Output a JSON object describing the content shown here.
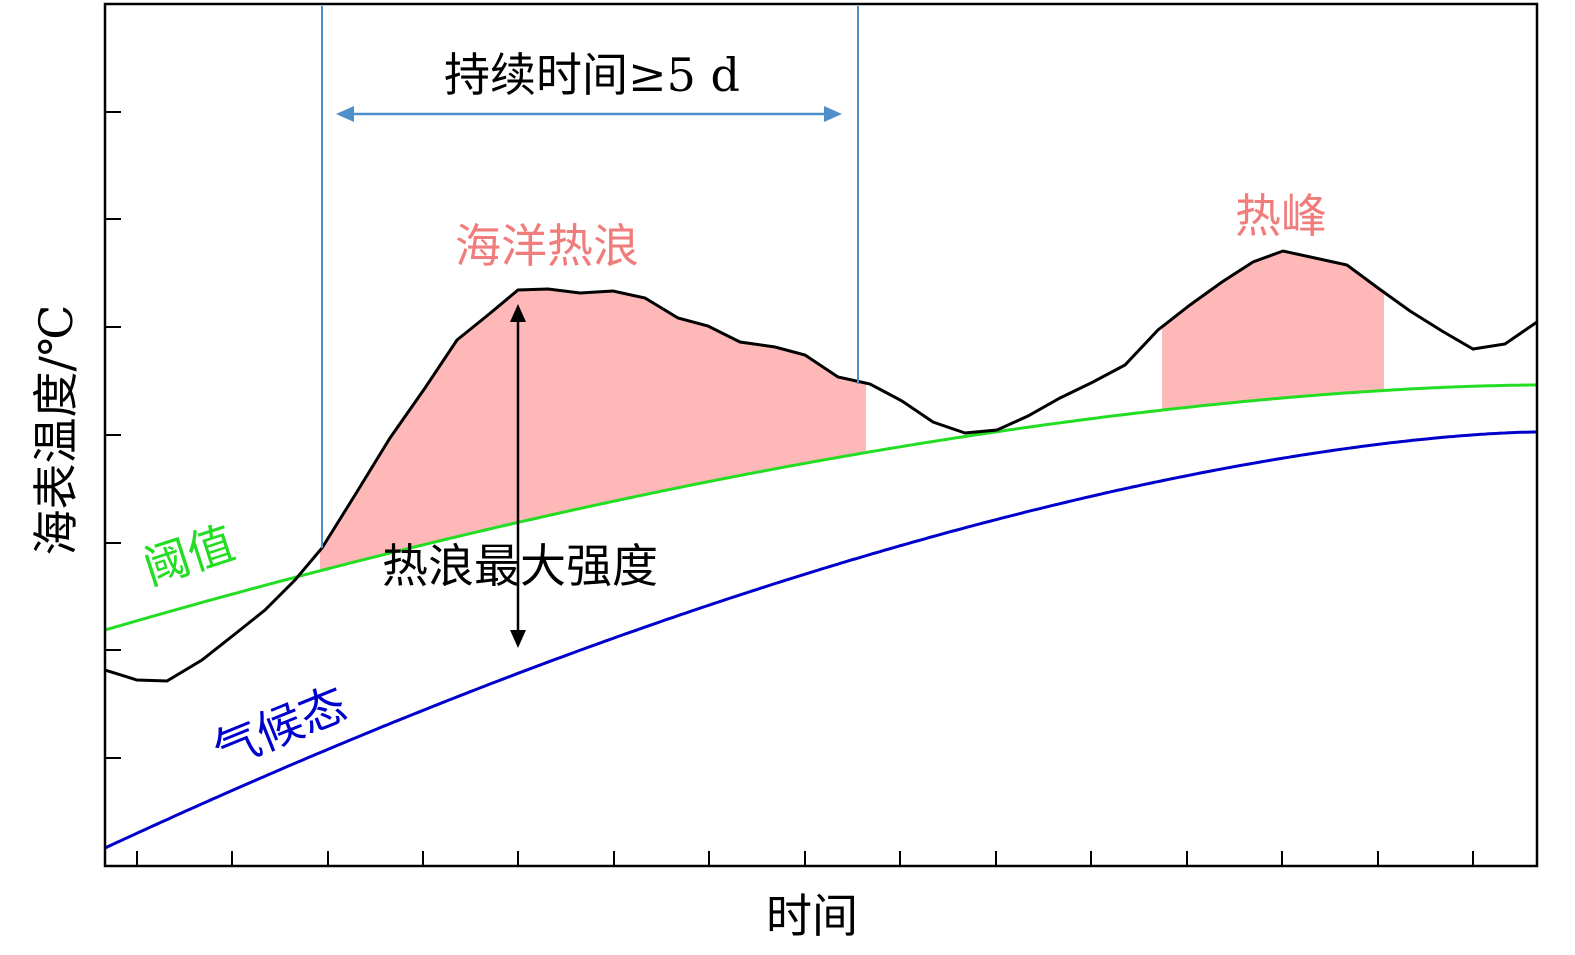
{
  "diagram": {
    "y_axis_label": "海表温度/℃",
    "x_axis_label": "时间",
    "duration_label": "持续时间≥5 d",
    "heatwave_label": "海洋热浪",
    "heat_peak_label": "热峰",
    "max_intensity_label": "热浪最大强度",
    "threshold_label": "阈值",
    "climatology_label": "气候态",
    "colors": {
      "sst_line": "#000000",
      "threshold_line": "#22dd22",
      "climatology_line": "#0000cc",
      "fill": "#ffb8b8",
      "event_marker": "#4f8fc9",
      "heat_label": "#f07c7c",
      "threshold_label": "#22dd22",
      "climatology_label": "#0000cc"
    }
  }
}
